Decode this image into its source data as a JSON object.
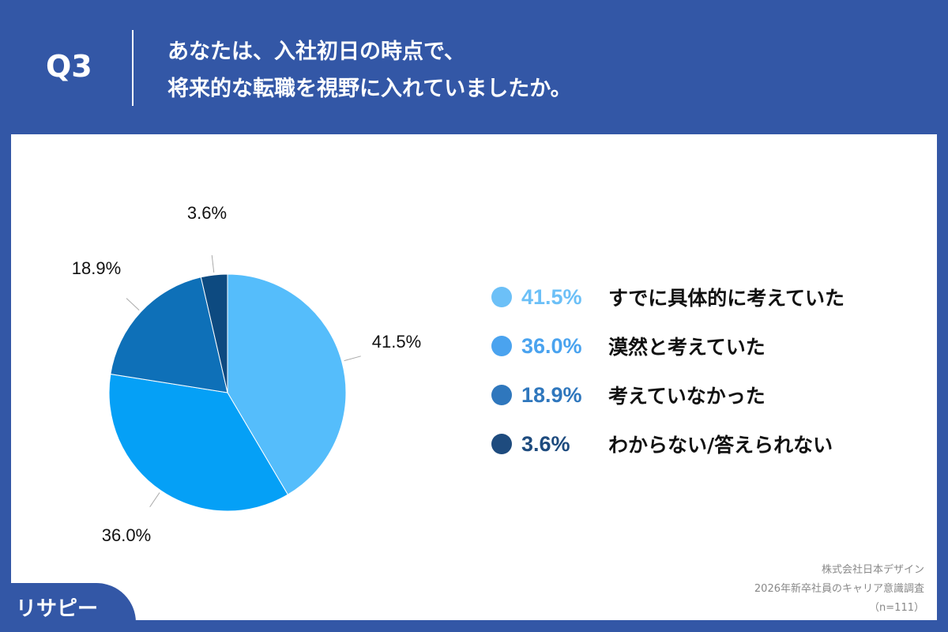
{
  "header": {
    "question": "Q3",
    "title_line1": "あなたは、入社初日の時点で、",
    "title_line2": "将来的な転職を視野に入れていましたか。"
  },
  "chart_data": {
    "type": "pie",
    "start": "12 o'clock, clockwise",
    "categories": [
      "すでに具体的に考えていた",
      "漠然と考えていた",
      "考えていなかった",
      "わからない/答えられない"
    ],
    "values": [
      41.5,
      36.0,
      18.9,
      3.6
    ],
    "data_labels": [
      "41.5%",
      "36.0%",
      "18.9%",
      "3.6%"
    ],
    "colors": [
      "#55bdfb",
      "#05a0f6",
      "#0e70b8",
      "#0d4a80"
    ],
    "legend_colors": [
      "#6cc0f7",
      "#4aa3ef",
      "#2f77bd",
      "#1e4b7e"
    ],
    "legend_placement": "right"
  },
  "source": {
    "company": "株式会社日本デザイン",
    "survey": "2026年新卒社員のキャリア意識調査",
    "n": "（n=111）"
  },
  "logo": {
    "text": "リサピー"
  },
  "colors": {
    "background": "#3357a6",
    "panel": "#ffffff"
  }
}
